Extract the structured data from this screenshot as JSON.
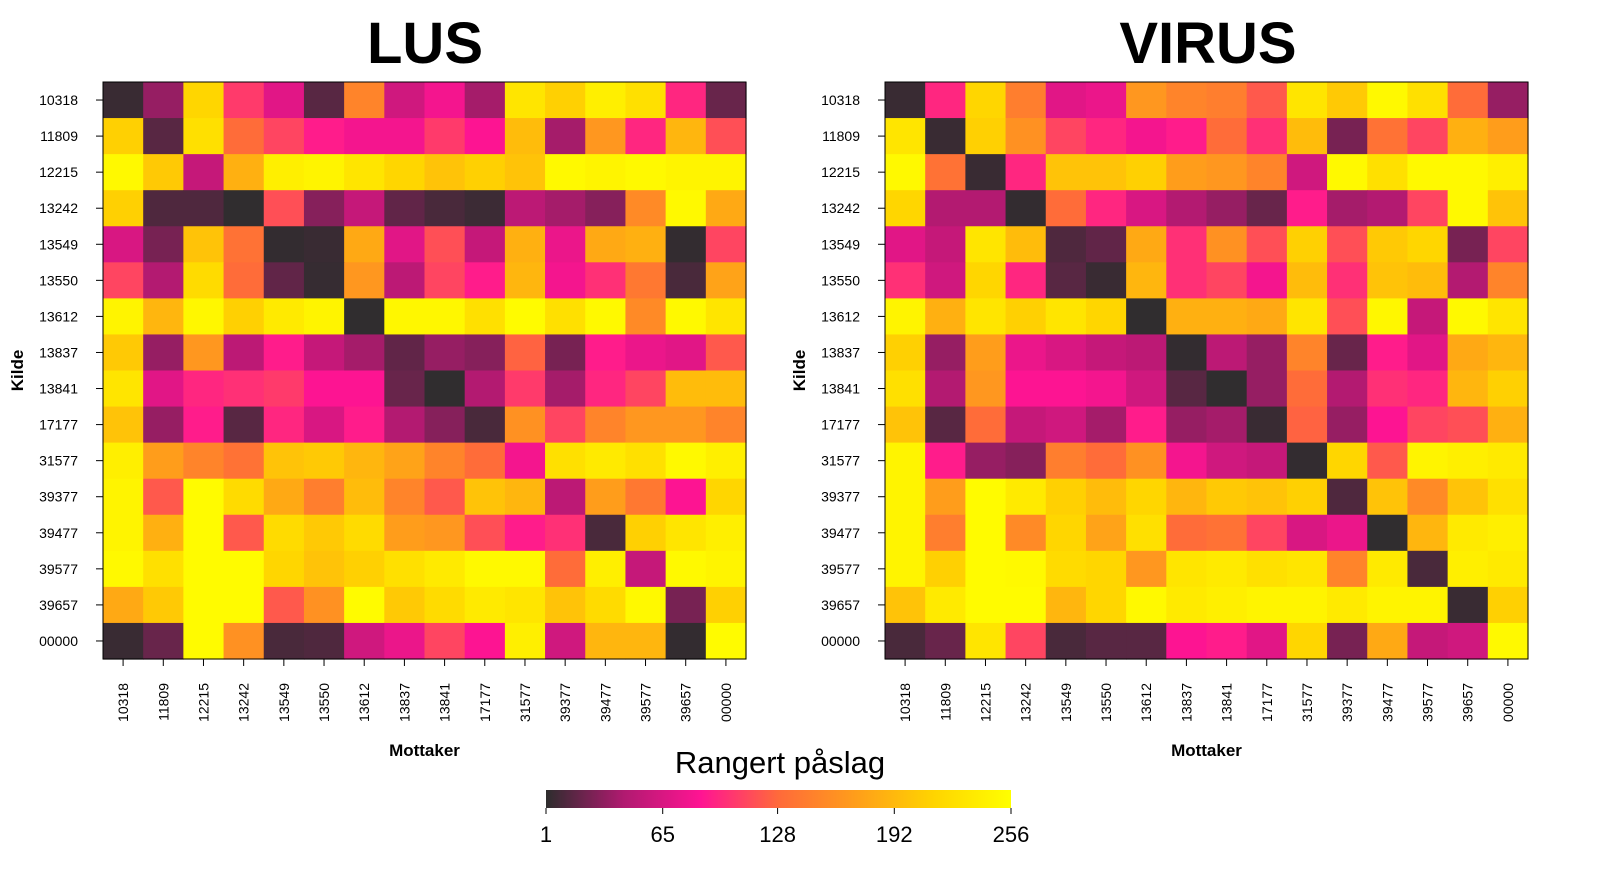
{
  "chart_data": [
    {
      "type": "heatmap",
      "title": "LUS",
      "xlabel": "Mottaker",
      "ylabel": "Kilde",
      "x_categories": [
        "10318",
        "11809",
        "12215",
        "13242",
        "13549",
        "13550",
        "13612",
        "13837",
        "13841",
        "17177",
        "31577",
        "39377",
        "39477",
        "39577",
        "39657",
        "00000"
      ],
      "y_categories": [
        "10318",
        "11809",
        "12215",
        "13242",
        "13549",
        "13550",
        "13612",
        "13837",
        "13841",
        "17177",
        "31577",
        "39377",
        "39477",
        "39577",
        "39657",
        "00000"
      ],
      "values": [
        [
          5,
          35,
          215,
          105,
          70,
          15,
          150,
          60,
          80,
          40,
          230,
          210,
          240,
          225,
          95,
          20
        ],
        [
          210,
          15,
          225,
          130,
          110,
          90,
          80,
          80,
          105,
          85,
          195,
          40,
          165,
          95,
          190,
          115
        ],
        [
          250,
          205,
          55,
          185,
          240,
          245,
          230,
          215,
          200,
          210,
          200,
          250,
          245,
          250,
          245,
          245
        ],
        [
          210,
          12,
          12,
          2,
          115,
          30,
          55,
          18,
          10,
          6,
          50,
          40,
          30,
          155,
          250,
          180
        ],
        [
          65,
          25,
          200,
          135,
          3,
          5,
          180,
          70,
          115,
          55,
          185,
          75,
          180,
          185,
          3,
          110
        ],
        [
          110,
          45,
          220,
          130,
          18,
          4,
          165,
          50,
          110,
          90,
          190,
          80,
          100,
          140,
          10,
          175
        ],
        [
          245,
          190,
          248,
          210,
          235,
          245,
          2,
          248,
          248,
          225,
          252,
          225,
          250,
          155,
          250,
          230
        ],
        [
          205,
          35,
          165,
          50,
          90,
          55,
          40,
          18,
          35,
          30,
          125,
          25,
          90,
          75,
          70,
          120
        ],
        [
          230,
          70,
          95,
          100,
          105,
          85,
          85,
          20,
          2,
          45,
          105,
          40,
          95,
          110,
          195,
          195
        ],
        [
          200,
          35,
          90,
          15,
          95,
          65,
          90,
          45,
          30,
          10,
          160,
          110,
          150,
          165,
          165,
          150
        ],
        [
          240,
          170,
          150,
          135,
          200,
          205,
          190,
          175,
          150,
          130,
          80,
          225,
          235,
          225,
          250,
          240
        ],
        [
          245,
          120,
          252,
          220,
          180,
          145,
          195,
          150,
          120,
          200,
          190,
          50,
          170,
          140,
          85,
          215
        ],
        [
          245,
          185,
          252,
          120,
          220,
          205,
          220,
          170,
          165,
          115,
          90,
          100,
          10,
          210,
          230,
          240
        ],
        [
          250,
          225,
          252,
          252,
          215,
          200,
          210,
          225,
          235,
          250,
          250,
          130,
          240,
          55,
          250,
          245
        ],
        [
          180,
          205,
          252,
          252,
          120,
          160,
          252,
          205,
          220,
          235,
          230,
          200,
          220,
          250,
          25,
          210
        ],
        [
          5,
          20,
          252,
          160,
          10,
          12,
          60,
          75,
          110,
          85,
          240,
          60,
          190,
          190,
          3,
          252
        ]
      ],
      "scale": [
        1,
        256
      ]
    },
    {
      "type": "heatmap",
      "title": "VIRUS",
      "xlabel": "Mottaker",
      "ylabel": "Kilde",
      "x_categories": [
        "10318",
        "11809",
        "12215",
        "13242",
        "13549",
        "13550",
        "13612",
        "13837",
        "13841",
        "17177",
        "31577",
        "39377",
        "39477",
        "39577",
        "39657",
        "00000"
      ],
      "y_categories": [
        "10318",
        "11809",
        "12215",
        "13242",
        "13549",
        "13550",
        "13612",
        "13837",
        "13841",
        "17177",
        "31577",
        "39377",
        "39477",
        "39577",
        "39657",
        "00000"
      ],
      "values": [
        [
          5,
          95,
          215,
          145,
          70,
          75,
          165,
          150,
          145,
          120,
          230,
          205,
          250,
          225,
          130,
          35
        ],
        [
          230,
          5,
          210,
          160,
          110,
          95,
          80,
          90,
          130,
          100,
          195,
          25,
          135,
          110,
          185,
          170
        ],
        [
          250,
          135,
          5,
          95,
          200,
          200,
          210,
          170,
          165,
          150,
          60,
          250,
          225,
          250,
          250,
          240
        ],
        [
          215,
          45,
          45,
          3,
          130,
          95,
          65,
          45,
          35,
          20,
          90,
          40,
          45,
          110,
          250,
          200
        ],
        [
          70,
          55,
          230,
          195,
          12,
          18,
          180,
          100,
          160,
          115,
          210,
          115,
          205,
          215,
          25,
          110
        ],
        [
          100,
          60,
          215,
          95,
          15,
          5,
          190,
          100,
          110,
          80,
          195,
          100,
          200,
          195,
          45,
          150
        ],
        [
          245,
          185,
          230,
          210,
          230,
          215,
          2,
          185,
          185,
          180,
          230,
          115,
          248,
          55,
          250,
          230
        ],
        [
          210,
          35,
          170,
          75,
          65,
          55,
          50,
          3,
          50,
          35,
          150,
          20,
          90,
          70,
          180,
          190
        ],
        [
          225,
          45,
          165,
          85,
          85,
          80,
          60,
          15,
          2,
          35,
          130,
          45,
          100,
          95,
          190,
          210
        ],
        [
          200,
          15,
          130,
          55,
          60,
          40,
          90,
          35,
          40,
          5,
          125,
          35,
          85,
          110,
          115,
          185
        ],
        [
          245,
          90,
          35,
          30,
          145,
          130,
          160,
          80,
          60,
          55,
          3,
          215,
          120,
          245,
          240,
          235
        ],
        [
          245,
          170,
          252,
          235,
          210,
          195,
          215,
          190,
          205,
          200,
          210,
          12,
          200,
          155,
          200,
          225
        ],
        [
          245,
          145,
          252,
          155,
          215,
          175,
          225,
          130,
          135,
          110,
          65,
          75,
          2,
          190,
          235,
          240
        ],
        [
          245,
          210,
          252,
          250,
          220,
          215,
          165,
          230,
          235,
          225,
          230,
          150,
          235,
          10,
          240,
          235
        ],
        [
          200,
          235,
          252,
          252,
          190,
          215,
          250,
          235,
          240,
          245,
          245,
          235,
          245,
          245,
          5,
          210
        ],
        [
          10,
          20,
          230,
          110,
          10,
          15,
          15,
          85,
          90,
          70,
          215,
          25,
          180,
          55,
          60,
          250
        ]
      ],
      "scale": [
        1,
        256
      ]
    }
  ],
  "legend": {
    "title": "Rangert påslag",
    "ticks": [
      "1",
      "65",
      "128",
      "192",
      "256"
    ],
    "tick_values": [
      1,
      65,
      128,
      192,
      256
    ]
  },
  "colors": {
    "scale_stops": [
      "#2d2d2d",
      "#b01a70",
      "#ff1493",
      "#ff6a3a",
      "#ff9e1a",
      "#ffd400",
      "#ffff00"
    ]
  }
}
